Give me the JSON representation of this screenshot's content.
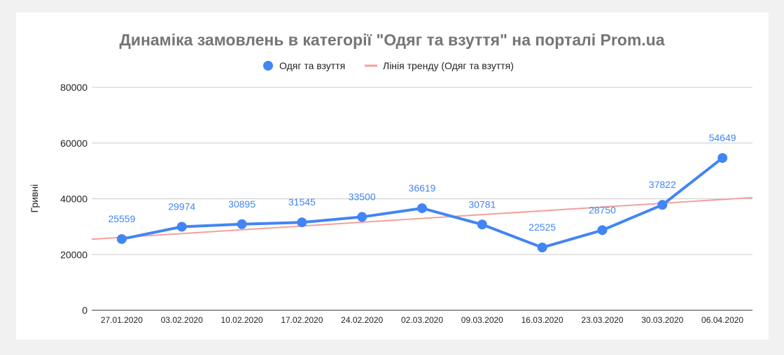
{
  "chart_data": {
    "type": "line",
    "title": "Динаміка замовлень в категорії \"Одяг та взуття\" на порталі Prom.ua",
    "xlabel": "",
    "ylabel": "Гривні",
    "categories": [
      "27.01.2020",
      "03.02.2020",
      "10.02.2020",
      "17.02.2020",
      "24.02.2020",
      "02.03.2020",
      "09.03.2020",
      "16.03.2020",
      "23.03.2020",
      "30.03.2020",
      "06.04.2020"
    ],
    "series": [
      {
        "name": "Одяг та взуття",
        "values": [
          25559,
          29974,
          30895,
          31545,
          33500,
          36619,
          30781,
          22525,
          28750,
          37822,
          54649
        ],
        "color": "#4285f4"
      }
    ],
    "trendline": {
      "name": "Лінія тренду (Одяг та взуття)",
      "color": "#f4a09a",
      "type": "linear"
    },
    "y_ticks": [
      "0",
      "20000",
      "40000",
      "60000",
      "80000"
    ],
    "ylim": [
      0,
      80000
    ],
    "grid": true,
    "legend": "top-center",
    "data_labels": true
  }
}
